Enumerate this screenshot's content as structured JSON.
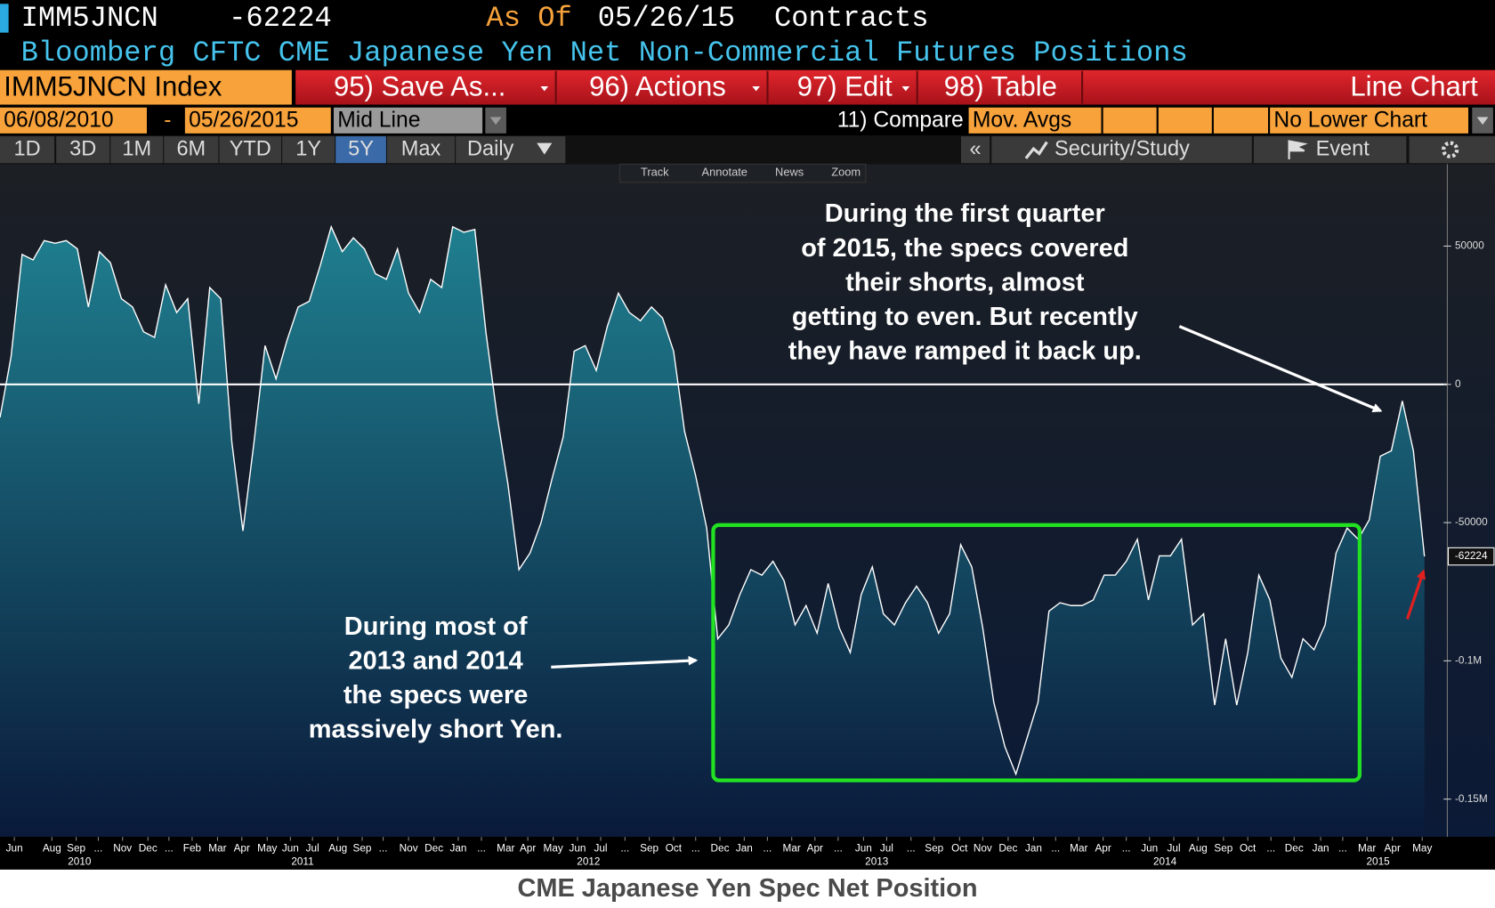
{
  "header": {
    "ticker": "IMM5JNCN",
    "as_of_label": "As Of",
    "as_of_date": "05/26/15",
    "units": "Contracts",
    "description": "Bloomberg CFTC CME Japanese Yen Net Non-Commercial Futures Positions"
  },
  "toolbar": {
    "security": "IMM5JNCN Index",
    "buttons": [
      "95) Save As...",
      "96) Actions",
      "97) Edit",
      "98) Table"
    ],
    "chart_type": "Line Chart"
  },
  "range_bar": {
    "start": "06/08/2010",
    "separator": "-",
    "end": "05/26/2015",
    "mode": "Mid Line",
    "compare": "11) Compare",
    "mov_avgs": "Mov. Avgs",
    "lower": "No Lower Chart"
  },
  "period_bar": {
    "periods": [
      "1D",
      "3D",
      "1M",
      "6M",
      "YTD",
      "1Y",
      "5Y",
      "Max"
    ],
    "active_period": 6,
    "frequency": "Daily",
    "collapse": "«",
    "security_study": "Security/Study",
    "event": "Event"
  },
  "chart_tools": [
    "Track",
    "Annotate",
    "News",
    "Zoom"
  ],
  "chart_data": {
    "type": "area",
    "color": "#ffffff",
    "fill_top": "#1f7f8f",
    "fill_bottom": "#0a1a3a",
    "reference_line": 0,
    "values": [
      -12000,
      10000,
      47000,
      45000,
      52000,
      51000,
      52000,
      49000,
      28000,
      48000,
      44000,
      31000,
      28000,
      19000,
      17000,
      36000,
      26000,
      31000,
      -7000,
      35000,
      31000,
      -21000,
      -53000,
      -21000,
      14000,
      2000,
      16000,
      28000,
      30000,
      43000,
      57000,
      48000,
      53000,
      49000,
      40000,
      38000,
      49000,
      33000,
      26000,
      38000,
      35000,
      57000,
      55000,
      56000,
      19000,
      -11000,
      -36000,
      -67000,
      -61000,
      -50000,
      -34000,
      -19000,
      12000,
      14000,
      5000,
      21000,
      33000,
      26000,
      23000,
      28000,
      24000,
      12000,
      -17000,
      -33000,
      -52000,
      -92000,
      -87000,
      -76000,
      -67000,
      -69000,
      -64000,
      -71000,
      -87000,
      -80000,
      -90000,
      -72000,
      -88000,
      -97000,
      -76000,
      -66000,
      -83000,
      -87000,
      -79000,
      -73000,
      -79000,
      -90000,
      -83000,
      -58000,
      -66000,
      -88000,
      -115000,
      -131000,
      -141000,
      -128000,
      -115000,
      -82000,
      -79000,
      -80000,
      -80000,
      -78000,
      -69000,
      -69000,
      -64000,
      -56000,
      -78000,
      -62000,
      -62000,
      -56000,
      -87000,
      -83000,
      -116000,
      -92000,
      -116000,
      -97000,
      -69000,
      -78000,
      -99000,
      -106000,
      -92000,
      -96000,
      -87000,
      -61000,
      -52000,
      -56000,
      -49000,
      -26000,
      -24000,
      -6000,
      -24000,
      -62224
    ],
    "xlim": [
      0,
      129
    ],
    "ylim": [
      -163000,
      80000
    ],
    "yticks": [
      50000,
      0,
      -50000,
      {
        "value": -100000,
        "label": "-0.1M"
      },
      {
        "value": -150000,
        "label": "-0.15M"
      }
    ],
    "xticks": [
      {
        "value": 1.3,
        "label": "Jun"
      },
      {
        "value": 4.7,
        "label": "Aug"
      },
      {
        "value": 6.9,
        "label": "Sep"
      },
      {
        "value": 8.9,
        "label": "..."
      },
      {
        "value": 11.1,
        "label": "Nov"
      },
      {
        "value": 13.4,
        "label": "Dec"
      },
      {
        "value": 15.3,
        "label": "..."
      },
      {
        "value": 17.4,
        "label": "Feb"
      },
      {
        "value": 19.7,
        "label": "Mar"
      },
      {
        "value": 21.9,
        "label": "Apr"
      },
      {
        "value": 24.2,
        "label": "May"
      },
      {
        "value": 26.3,
        "label": "Jun"
      },
      {
        "value": 28.3,
        "label": "Jul"
      },
      {
        "value": 30.6,
        "label": "Aug"
      },
      {
        "value": 32.8,
        "label": "Sep"
      },
      {
        "value": 34.7,
        "label": "..."
      },
      {
        "value": 37.0,
        "label": "Nov"
      },
      {
        "value": 39.3,
        "label": "Dec"
      },
      {
        "value": 41.5,
        "label": "Jan"
      },
      {
        "value": 43.6,
        "label": "..."
      },
      {
        "value": 45.8,
        "label": "Mar"
      },
      {
        "value": 47.8,
        "label": "Apr"
      },
      {
        "value": 50.1,
        "label": "May"
      },
      {
        "value": 52.3,
        "label": "Jun"
      },
      {
        "value": 54.4,
        "label": "Jul"
      },
      {
        "value": 56.6,
        "label": "..."
      },
      {
        "value": 58.8,
        "label": "Sep"
      },
      {
        "value": 61.0,
        "label": "Oct"
      },
      {
        "value": 63.0,
        "label": "..."
      },
      {
        "value": 65.2,
        "label": "Dec"
      },
      {
        "value": 67.4,
        "label": "Jan"
      },
      {
        "value": 69.5,
        "label": "..."
      },
      {
        "value": 71.7,
        "label": "Mar"
      },
      {
        "value": 73.8,
        "label": "Apr"
      },
      {
        "value": 75.9,
        "label": "..."
      },
      {
        "value": 78.2,
        "label": "Jun"
      },
      {
        "value": 80.3,
        "label": "Jul"
      },
      {
        "value": 82.5,
        "label": "..."
      },
      {
        "value": 84.6,
        "label": "Sep"
      },
      {
        "value": 86.9,
        "label": "Oct"
      },
      {
        "value": 89.0,
        "label": "Nov"
      },
      {
        "value": 91.3,
        "label": "Dec"
      },
      {
        "value": 93.6,
        "label": "Jan"
      },
      {
        "value": 95.6,
        "label": "..."
      },
      {
        "value": 97.7,
        "label": "Mar"
      },
      {
        "value": 99.9,
        "label": "Apr"
      },
      {
        "value": 102.0,
        "label": "..."
      },
      {
        "value": 104.1,
        "label": "Jun"
      },
      {
        "value": 106.3,
        "label": "Jul"
      },
      {
        "value": 108.5,
        "label": "Aug"
      },
      {
        "value": 110.8,
        "label": "Sep"
      },
      {
        "value": 113.0,
        "label": "Oct"
      },
      {
        "value": 115.1,
        "label": "..."
      },
      {
        "value": 117.2,
        "label": "Dec"
      },
      {
        "value": 119.6,
        "label": "Jan"
      },
      {
        "value": 121.6,
        "label": "..."
      },
      {
        "value": 123.8,
        "label": "Mar"
      },
      {
        "value": 126.1,
        "label": "Apr"
      },
      {
        "value": 128.8,
        "label": "May"
      }
    ],
    "year_ticks": [
      {
        "value": 7.2,
        "label": "2010"
      },
      {
        "value": 27.4,
        "label": "2011"
      },
      {
        "value": 53.3,
        "label": "2012"
      },
      {
        "value": 79.4,
        "label": "2013"
      },
      {
        "value": 105.5,
        "label": "2014"
      },
      {
        "value": 124.8,
        "label": "2015"
      }
    ],
    "annotations": [
      {
        "lines": [
          "During the first quarter",
          "of 2015, the specs covered",
          "their shorts, almost",
          "getting to even.  But recently",
          "they have ramped it back up."
        ]
      },
      {
        "lines": [
          "During most of",
          "2013 and 2014",
          "the specs were",
          "massively short Yen."
        ]
      }
    ],
    "caption": "CME Japanese Yen Spec Net Position"
  }
}
